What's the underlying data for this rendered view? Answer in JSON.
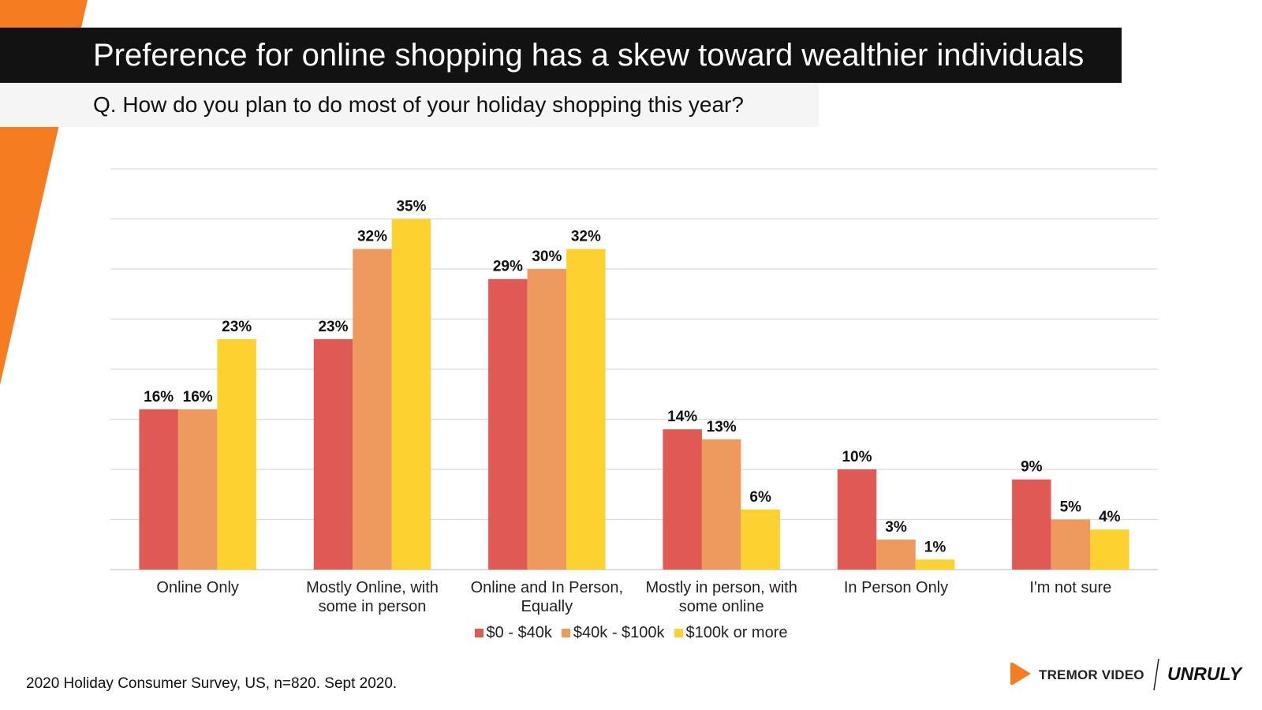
{
  "header": {
    "title": "Preference for online shopping has a skew toward wealthier individuals",
    "subtitle": "Q. How do you plan to do most of your holiday shopping this year?"
  },
  "chart_data": {
    "type": "bar",
    "categories": [
      [
        "Online Only"
      ],
      [
        "Mostly Online, with",
        "some in person"
      ],
      [
        "Online and In Person,",
        "Equally"
      ],
      [
        "Mostly in person, with",
        "some online"
      ],
      [
        "In Person Only"
      ],
      [
        "I'm not sure"
      ]
    ],
    "series": [
      {
        "name": "$0 - $40k",
        "color": "#e05a55",
        "values": [
          16,
          23,
          29,
          14,
          10,
          9
        ]
      },
      {
        "name": "$40k - $100k",
        "color": "#ee9a5f",
        "values": [
          16,
          32,
          30,
          13,
          3,
          5
        ]
      },
      {
        "name": "$100k or more",
        "color": "#fdd130",
        "values": [
          23,
          35,
          32,
          6,
          1,
          4
        ]
      }
    ],
    "ylim": [
      0,
      40
    ],
    "grid": true,
    "legend": "bottom-center",
    "value_suffix": "%"
  },
  "footnote": "2020 Holiday Consumer Survey, US, n=820. Sept 2020.",
  "logos": {
    "tremor": "TREMOR VIDEO",
    "unruly": "UNRULY"
  },
  "colors": {
    "accent": "#f57c20",
    "title_bg": "#121212",
    "subtitle_bg": "#f5f5f5"
  }
}
